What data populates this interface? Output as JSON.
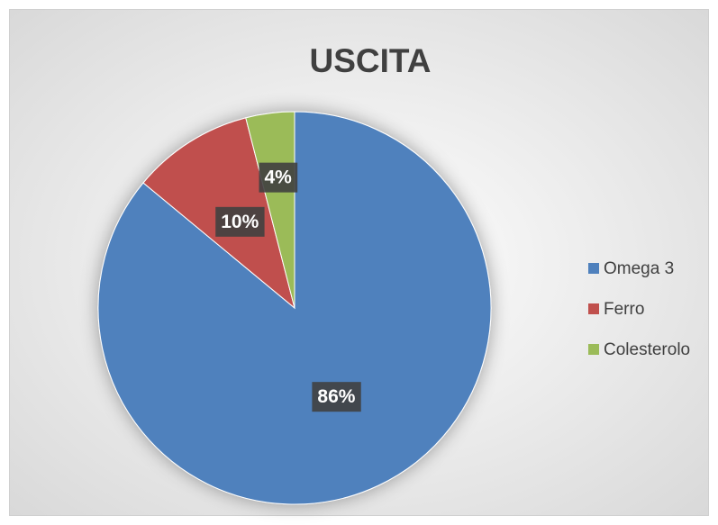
{
  "chart_data": {
    "type": "pie",
    "title": "USCITA",
    "categories": [
      "Omega 3",
      "Ferro",
      "Colesterolo"
    ],
    "values": [
      86,
      10,
      4
    ],
    "value_labels": [
      "86%",
      "10%",
      "4%"
    ],
    "colors": [
      "#4f81bd",
      "#c0504d",
      "#9bbb59"
    ],
    "legend": "right"
  }
}
